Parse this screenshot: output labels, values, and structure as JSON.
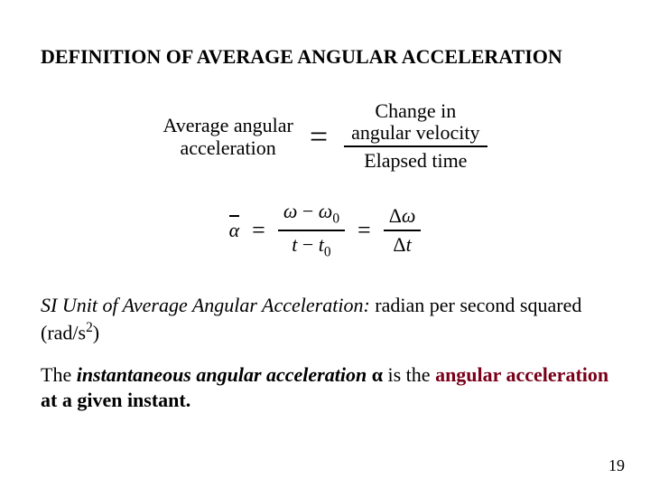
{
  "heading": "DEFINITION OF AVERAGE ANGULAR ACCELERATION",
  "word_eq": {
    "lhs_line1": "Average angular",
    "lhs_line2": "acceleration",
    "eq": "=",
    "num_line1": "Change in",
    "num_line2": "angular velocity",
    "den": "Elapsed time"
  },
  "sym_eq": {
    "alpha": "α",
    "eq1": "=",
    "num1_w": "ω",
    "num1_minus": " − ",
    "num1_w0": "ω",
    "num1_sub0": "0",
    "den1_t": "t",
    "den1_minus": " − ",
    "den1_t0": "t",
    "den1_sub0": "0",
    "eq2": "=",
    "num2_delta": "Δ",
    "num2_w": "ω",
    "den2_delta": "Δ",
    "den2_t": "t"
  },
  "si_unit": {
    "label": "SI Unit of Average Angular Acceleration:",
    "text1": " radian per second squared (rad/s",
    "exp": "2",
    "text2": ")"
  },
  "inst": {
    "pre": "The ",
    "term": "instantaneous angular acceleration ",
    "alpha": "α",
    "mid": " is the ",
    "link": "angular acceleration",
    "post": " at a given instant."
  },
  "page_number": "19",
  "colors": {
    "link": "#7a0019",
    "text": "#000000",
    "bg": "#ffffff"
  }
}
